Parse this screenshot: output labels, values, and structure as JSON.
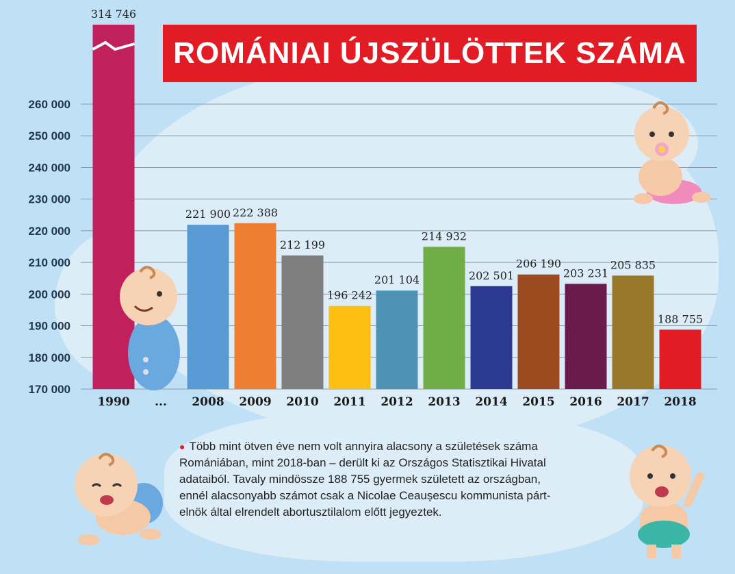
{
  "title": "ROMÁNIAI ÚJSZÜLÖTTEK SZÁMA",
  "note_lines": [
    "Több mint ötven éve nem volt annyira alacsony a születések száma",
    "Romániában, mint 2018-ban – derült ki az Országos Statisztikai Hivatal",
    "adataiból. Tavaly mindössze 188 755 gyermek született az országban,",
    "ennél alacsonyabb számot csak a Nicolae Ceaușescu kommunista párt-",
    "elnök által elrendelt abortusztilalom előtt jegyeztek."
  ],
  "colors": {
    "title_bg": "#e21c24",
    "background": "#bfe0f5",
    "bullet": "#e21c24"
  },
  "chart_data": {
    "type": "bar",
    "title": "ROMÁNIAI ÚJSZÜLÖTTEK SZÁMA",
    "xlabel": "",
    "ylabel": "",
    "ylim": [
      170000,
      260000
    ],
    "y_ticks": [
      170000,
      180000,
      190000,
      200000,
      210000,
      220000,
      230000,
      240000,
      250000,
      260000
    ],
    "y_tick_labels": [
      "170 000",
      "180 000",
      "190 000",
      "200 000",
      "210 000",
      "220 000",
      "230 000",
      "240 000",
      "250 000",
      "260 000"
    ],
    "grid": true,
    "axis_break_on_first_bar": true,
    "categories": [
      "1990",
      "...",
      "2008",
      "2009",
      "2010",
      "2011",
      "2012",
      "2013",
      "2014",
      "2015",
      "2016",
      "2017",
      "2018"
    ],
    "values": [
      314746,
      null,
      221900,
      222388,
      212199,
      196242,
      201104,
      214932,
      202501,
      206190,
      203231,
      205835,
      188755
    ],
    "value_labels": [
      "314 746",
      "",
      "221 900",
      "222 388",
      "212 199",
      "196 242",
      "201 104",
      "214 932",
      "202 501",
      "206 190",
      "203 231",
      "205 835",
      "188 755"
    ],
    "bar_colors": [
      "#c0215d",
      "",
      "#5b9bd5",
      "#ed7d31",
      "#7f7f7f",
      "#fdbf12",
      "#4e93b5",
      "#70ad47",
      "#2b3990",
      "#9c4a1f",
      "#6a1b4d",
      "#98782b",
      "#e21c24"
    ]
  }
}
